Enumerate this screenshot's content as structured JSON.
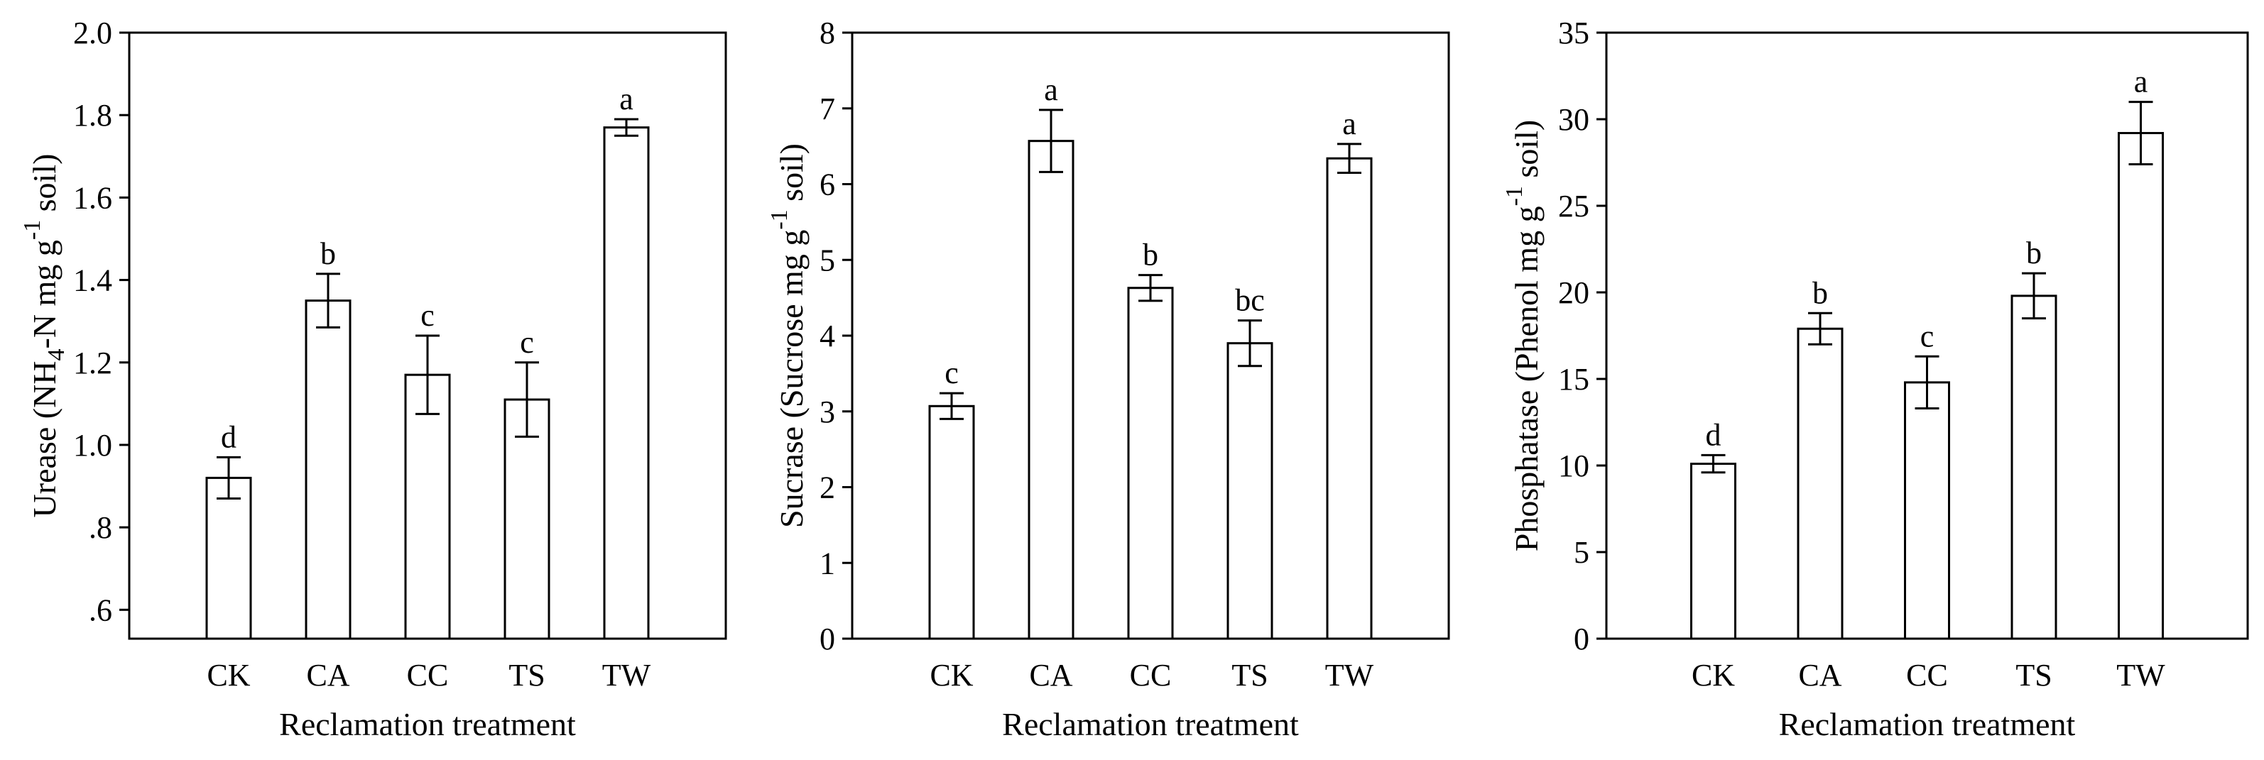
{
  "chart_data": [
    {
      "type": "bar",
      "panel": "urease",
      "categories": [
        "CK",
        "CA",
        "CC",
        "TS",
        "TW"
      ],
      "values": [
        0.92,
        1.35,
        1.17,
        1.11,
        1.77
      ],
      "errors": [
        0.05,
        0.065,
        0.095,
        0.09,
        0.02
      ],
      "significance": [
        "d",
        "b",
        "c",
        "c",
        "a"
      ],
      "ylim": [
        0.53,
        2.0
      ],
      "yticks": [
        0.6,
        0.8,
        1.0,
        1.2,
        1.4,
        1.6,
        1.8,
        2.0
      ],
      "ytick_labels": [
        ".6",
        ".8",
        "1.0",
        "1.2",
        "1.4",
        "1.6",
        "1.8",
        "2.0"
      ],
      "ylabel_parts": [
        "Urease (NH",
        "4",
        "-N mg g",
        "-1",
        " soil)"
      ],
      "xlabel": "Reclamation treatment"
    },
    {
      "type": "bar",
      "panel": "sucrase",
      "categories": [
        "CK",
        "CA",
        "CC",
        "TS",
        "TW"
      ],
      "values": [
        3.07,
        6.57,
        4.63,
        3.9,
        6.34
      ],
      "errors": [
        0.17,
        0.41,
        0.17,
        0.3,
        0.19
      ],
      "significance": [
        "c",
        "a",
        "b",
        "bc",
        "a"
      ],
      "ylim": [
        0,
        8
      ],
      "yticks": [
        0,
        1,
        2,
        3,
        4,
        5,
        6,
        7,
        8
      ],
      "ytick_labels": [
        "0",
        "1",
        "2",
        "3",
        "4",
        "5",
        "6",
        "7",
        "8"
      ],
      "ylabel_parts": [
        "Sucrase (Sucrose mg g",
        "-1",
        " soil)"
      ],
      "xlabel": "Reclamation treatment"
    },
    {
      "type": "bar",
      "panel": "phosphatase",
      "categories": [
        "CK",
        "CA",
        "CC",
        "TS",
        "TW"
      ],
      "values": [
        10.1,
        17.9,
        14.8,
        19.8,
        29.2
      ],
      "errors": [
        0.5,
        0.9,
        1.5,
        1.3,
        1.8
      ],
      "significance": [
        "d",
        "b",
        "c",
        "b",
        "a"
      ],
      "ylim": [
        0,
        35
      ],
      "yticks": [
        0,
        5,
        10,
        15,
        20,
        25,
        30,
        35
      ],
      "ytick_labels": [
        "0",
        "5",
        "10",
        "15",
        "20",
        "25",
        "30",
        "35"
      ],
      "ylabel_parts": [
        "Phosphatase (Phenol mg g",
        "-1",
        " soil)"
      ],
      "xlabel": "Reclamation treatment"
    }
  ]
}
